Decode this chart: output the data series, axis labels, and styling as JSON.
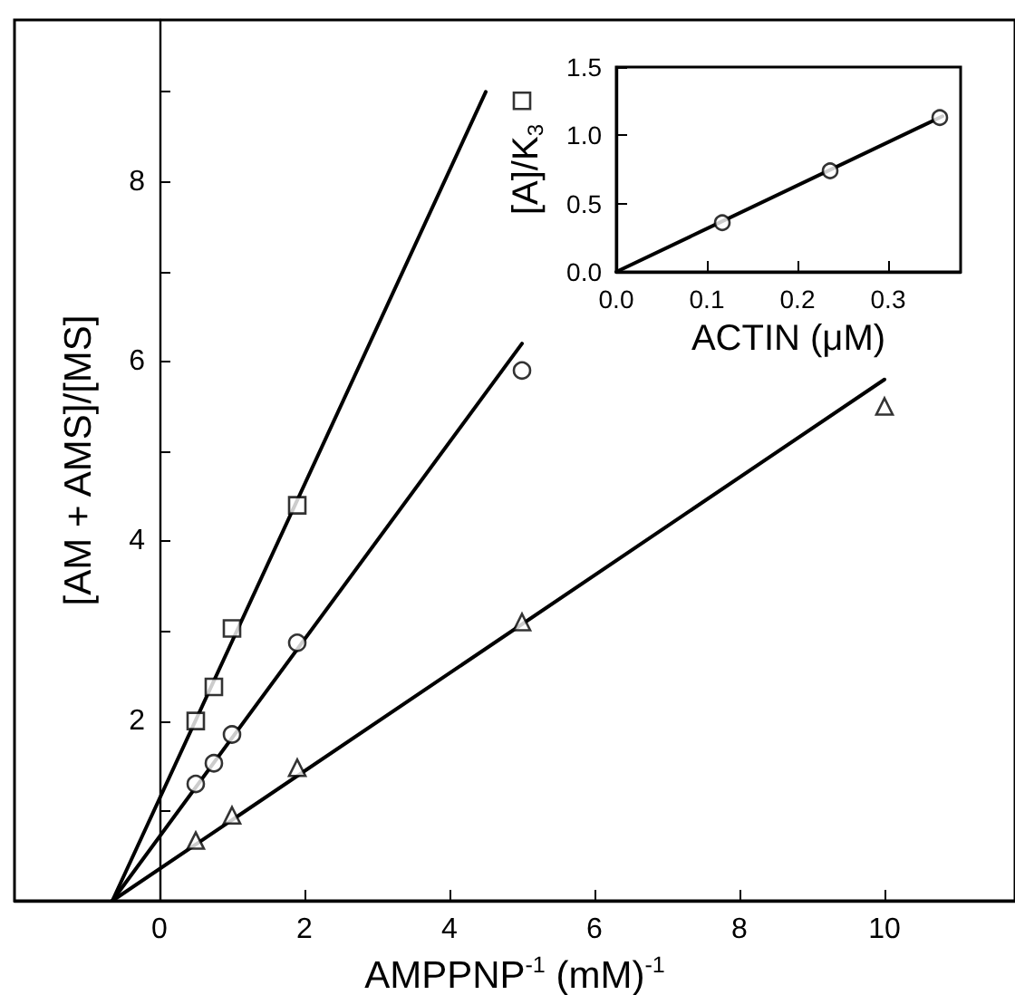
{
  "chart_data": [
    {
      "type": "scatter",
      "xlabel": "AMPPNP$^{-1}$ (mM)$^{-1}$",
      "ylabel": "[AM + AMS]/[MS]",
      "xlim": [
        -2,
        11.8
      ],
      "ylim": [
        0,
        9.8
      ],
      "xticks": [
        0,
        2,
        4,
        6,
        8,
        10
      ],
      "yticks": [
        {
          "value": 1,
          "label": null
        },
        2,
        {
          "value": 3,
          "label": null
        },
        4,
        {
          "value": 5,
          "label": null
        },
        6,
        {
          "value": 7,
          "label": null
        },
        8,
        {
          "value": 9,
          "label": null
        }
      ],
      "grid": false,
      "series": [
        {
          "color": "#000000",
          "marker": "square",
          "x": [
            0.5,
            0.75,
            1.0,
            1.9,
            5.0
          ],
          "values": [
            2.0,
            2.38,
            3.03,
            4.4,
            8.9
          ]
        },
        {
          "color": "#000000",
          "marker": "circle",
          "x": [
            0.5,
            0.75,
            1.0,
            1.9,
            5.0
          ],
          "values": [
            1.3,
            1.53,
            1.85,
            2.87,
            5.9
          ]
        },
        {
          "color": "#000000",
          "marker": "triangle",
          "x": [
            0.5,
            1.0,
            1.9,
            5.0,
            10.0
          ],
          "values": [
            0.67,
            0.95,
            1.48,
            3.1,
            5.5
          ]
        },
        {
          "type": "line",
          "color": "#000000",
          "marker": "none",
          "x": [
            -0.65,
            4.5
          ],
          "values": [
            0,
            9.0
          ]
        },
        {
          "type": "line",
          "color": "#000000",
          "marker": "none",
          "x": [
            -0.65,
            5.0
          ],
          "values": [
            0,
            6.2
          ]
        },
        {
          "type": "line",
          "color": "#000000",
          "marker": "none",
          "x": [
            -0.65,
            10.0
          ],
          "values": [
            0,
            5.8
          ]
        }
      ]
    },
    {
      "type": "scatter",
      "xlabel": "ACTIN (μM)",
      "ylabel": "[A]/K$_{3}$",
      "xlim": [
        0,
        0.38
      ],
      "ylim": [
        0,
        1.5
      ],
      "xticks": [
        {
          "value": 0,
          "label": "0.0"
        },
        0.1,
        0.2,
        0.3
      ],
      "yticks": [
        {
          "value": 0,
          "label": "0.0"
        },
        0.5,
        {
          "value": 1,
          "label": "1.0"
        },
        1.5
      ],
      "grid": false,
      "series": [
        {
          "color": "#000000",
          "marker": "circle",
          "x": [
            0.117,
            0.236,
            0.357
          ],
          "values": [
            0.36,
            0.74,
            1.13
          ]
        },
        {
          "type": "line",
          "color": "#000000",
          "marker": "none",
          "x": [
            0,
            0.36
          ],
          "values": [
            0,
            1.14
          ]
        }
      ]
    }
  ]
}
